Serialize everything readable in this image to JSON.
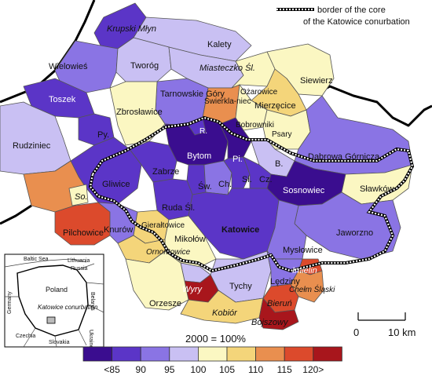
{
  "legend_note": {
    "line1": "border of the core",
    "line2": "of the Katowice conurbation"
  },
  "base_year": "2000 = 100%",
  "scale": {
    "zero": "0",
    "distance": "10 km"
  },
  "legend": {
    "classes": [
      {
        "color": "#3a0d8f"
      },
      {
        "color": "#5b35c7"
      },
      {
        "color": "#8a74e4"
      },
      {
        "color": "#c9c0f3"
      },
      {
        "color": "#fbf7c2"
      },
      {
        "color": "#f4d57a"
      },
      {
        "color": "#e98f4f"
      },
      {
        "color": "#dc4a2c"
      },
      {
        "color": "#a8161c"
      }
    ],
    "tick_labels": [
      "<85",
      "90",
      "95",
      "100",
      "105",
      "110",
      "115",
      "120>"
    ]
  },
  "regions": {
    "krupski_mlyn": "Krupski Młyn",
    "kalety": "Kalety",
    "wielowies": "Wielowieś",
    "tworog": "Tworóg",
    "miasteczko": "Miasteczko Śl.",
    "tarnowskie": "Tarnowskie Góry",
    "swierklaniec": "Świerkla-niec",
    "ozarowice": "Ożarowice",
    "siewierz": "Siewierz",
    "mierzecice": "Mierzęcice",
    "toszek": "Toszek",
    "zbroslawice": "Zbrosławice",
    "bobrowniki": "Bobrowniki",
    "psary": "Psary",
    "rudziniec": "Rudziniec",
    "py": "Py.",
    "r": "R.",
    "bytom": "Bytom",
    "pi": "Pi.",
    "b": "B.",
    "dabrowa": "Dąbrowa Górnicza",
    "zabrze": "Zabrze",
    "gliwice": "Gliwice",
    "sw": "Św.",
    "ch": "Ch.",
    "si": "Si.",
    "cz": "Cz.",
    "sosnowiec": "Sosnowiec",
    "slawkow": "Sławków",
    "so": "So.",
    "ruda": "Ruda Śl.",
    "pilchowice": "Pilchowice",
    "knurow": "Knurów",
    "gieraltowice": "Gierałtowice",
    "mikolow": "Mikołów",
    "katowice": "Katowice",
    "jaworzno": "Jaworzno",
    "ornontowice": "Ornontowice",
    "myslowice": "Mysłowice",
    "imielin": "Imielin",
    "lazisk": "Łaziska G.",
    "ledziny": "Lędziny",
    "chelm": "Chełm Śląski",
    "wyry": "Wyry",
    "tychy": "Tychy",
    "orzesze": "Orzesze",
    "bierun": "Bieruń",
    "kobior": "Kobiór",
    "bojszowy": "Bojszowy"
  },
  "inset": {
    "baltic": "Baltic Sea",
    "lithuania": "Lithuania",
    "russia": "Russia",
    "poland": "Poland",
    "belarus": "Belarus",
    "germany": "Germany",
    "katowice": "Katowice conurbation",
    "ukraine": "Ukraine",
    "czechia": "Czechia",
    "slovakia": "Slovakia"
  }
}
